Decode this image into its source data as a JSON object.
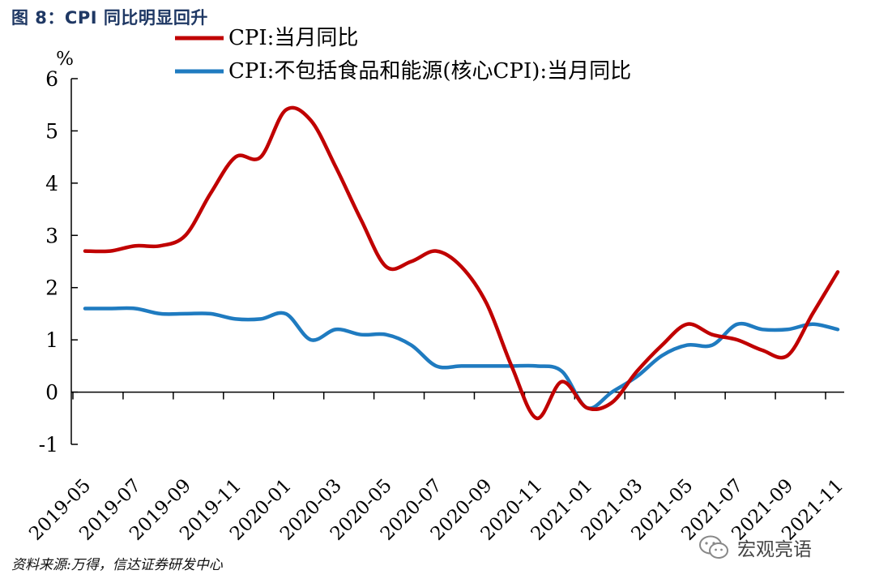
{
  "figure_title": "图 8：CPI 同比明显回升",
  "source_note": "资料来源:万得，信达证券研发中心",
  "watermark": "宏观亮语",
  "chart_data": {
    "type": "line",
    "unit_label": "%",
    "ylim": [
      -1,
      6
    ],
    "yticks": [
      "-1",
      "0",
      "1",
      "2",
      "3",
      "4",
      "5",
      "6"
    ],
    "x": [
      "2019-05",
      "2019-06",
      "2019-07",
      "2019-08",
      "2019-09",
      "2019-10",
      "2019-11",
      "2019-12",
      "2020-01",
      "2020-02",
      "2020-03",
      "2020-04",
      "2020-05",
      "2020-06",
      "2020-07",
      "2020-08",
      "2020-09",
      "2020-10",
      "2020-11",
      "2020-12",
      "2021-01",
      "2021-02",
      "2021-03",
      "2021-04",
      "2021-05",
      "2021-06",
      "2021-07",
      "2021-08",
      "2021-09",
      "2021-10",
      "2021-11"
    ],
    "xtick_labels": [
      "2019-05",
      "2019-07",
      "2019-09",
      "2019-11",
      "2020-01",
      "2020-03",
      "2020-05",
      "2020-07",
      "2020-09",
      "2020-11",
      "2021-01",
      "2021-03",
      "2021-05",
      "2021-07",
      "2021-09",
      "2021-11"
    ],
    "legend_position": "top",
    "series": [
      {
        "name": "CPI:当月同比",
        "color": "#c00000",
        "values": [
          2.7,
          2.7,
          2.8,
          2.8,
          3.0,
          3.8,
          4.5,
          4.5,
          5.4,
          5.2,
          4.3,
          3.3,
          2.4,
          2.5,
          2.7,
          2.4,
          1.7,
          0.5,
          -0.5,
          0.2,
          -0.3,
          -0.2,
          0.4,
          0.9,
          1.3,
          1.1,
          1.0,
          0.8,
          0.7,
          1.5,
          2.3
        ]
      },
      {
        "name": "CPI:不包括食品和能源(核心CPI):当月同比",
        "color": "#1f7bc0",
        "values": [
          1.6,
          1.6,
          1.6,
          1.5,
          1.5,
          1.5,
          1.4,
          1.4,
          1.5,
          1.0,
          1.2,
          1.1,
          1.1,
          0.9,
          0.5,
          0.5,
          0.5,
          0.5,
          0.5,
          0.4,
          -0.3,
          0.0,
          0.3,
          0.7,
          0.9,
          0.9,
          1.3,
          1.2,
          1.2,
          1.3,
          1.2
        ]
      }
    ]
  }
}
